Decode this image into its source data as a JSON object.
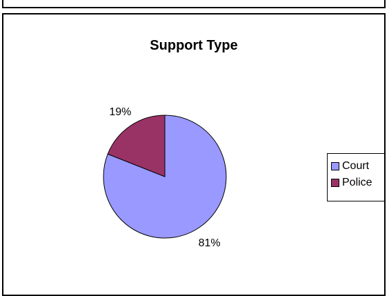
{
  "chart_data": {
    "type": "pie",
    "title": "Support Type",
    "categories": [
      "Court",
      "Police"
    ],
    "values": [
      81,
      19
    ],
    "data_labels": [
      "81%",
      "19%"
    ],
    "colors": [
      "#9999FF",
      "#993366"
    ],
    "legend_position": "right"
  }
}
